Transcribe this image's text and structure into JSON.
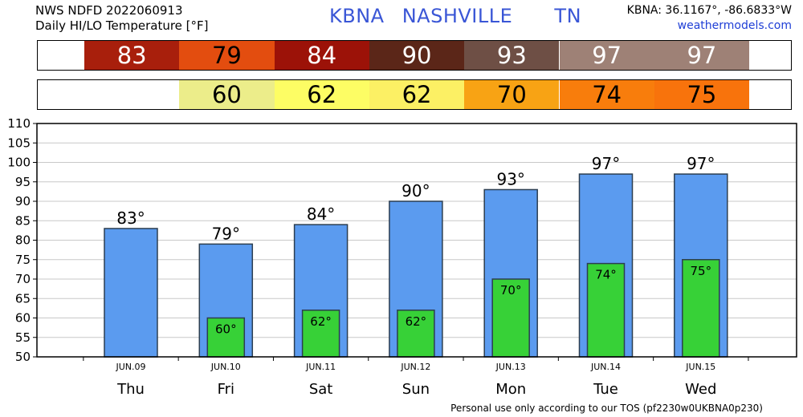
{
  "header": {
    "line1": "NWS NDFD 2022060913",
    "line2": "Daily HI/LO Temperature [°F]",
    "station_id": "KBNA",
    "city": "NASHVILLE",
    "state": "TN",
    "coords": "KBNA: 36.1167°, -86.6833°W",
    "site": "weathermodels.com"
  },
  "footer": "Personal use only according to our TOS (pf2230w0UKBNA0p230)",
  "hi_strip": [
    {
      "value": "83",
      "color": "#a81f0c",
      "text_color": "#ffffff"
    },
    {
      "value": "79",
      "color": "#e34d0f",
      "text_color": "#000000"
    },
    {
      "value": "84",
      "color": "#9c1208",
      "text_color": "#ffffff"
    },
    {
      "value": "90",
      "color": "#5b2618",
      "text_color": "#ffffff"
    },
    {
      "value": "93",
      "color": "#6e4f45",
      "text_color": "#ffffff"
    },
    {
      "value": "97",
      "color": "#9e8176",
      "text_color": "#ffffff"
    },
    {
      "value": "97",
      "color": "#9e8176",
      "text_color": "#ffffff"
    }
  ],
  "lo_strip": [
    {
      "value": "",
      "color": "#ffffff",
      "text_color": "#000000"
    },
    {
      "value": "60",
      "color": "#eced8a",
      "text_color": "#000000"
    },
    {
      "value": "62",
      "color": "#fdfd64",
      "text_color": "#000000"
    },
    {
      "value": "62",
      "color": "#fcf064",
      "text_color": "#000000"
    },
    {
      "value": "70",
      "color": "#f8a314",
      "text_color": "#000000"
    },
    {
      "value": "74",
      "color": "#f87d0c",
      "text_color": "#000000"
    },
    {
      "value": "75",
      "color": "#f8730c",
      "text_color": "#000000"
    }
  ],
  "chart_data": {
    "type": "bar",
    "title": "Daily HI/LO Temperature [°F]",
    "categories": [
      "JUN.09",
      "JUN.10",
      "JUN.11",
      "JUN.12",
      "JUN.13",
      "JUN.14",
      "JUN.15"
    ],
    "days": [
      "Thu",
      "Fri",
      "Sat",
      "Sun",
      "Mon",
      "Tue",
      "Wed"
    ],
    "series": [
      {
        "values": [
          83,
          79,
          84,
          90,
          93,
          97,
          97
        ],
        "color": "#5b9bef",
        "label_suffix": "°"
      },
      {
        "values": [
          null,
          60,
          62,
          62,
          70,
          74,
          75
        ],
        "color": "#37d137",
        "label_suffix": "°"
      }
    ],
    "ylim": [
      50,
      110
    ],
    "yticks": [
      50,
      55,
      60,
      65,
      70,
      75,
      80,
      85,
      90,
      95,
      100,
      105,
      110
    ],
    "grid": true,
    "colors": {
      "hi_bar": "#5b9bef",
      "lo_bar": "#37d137",
      "grid": "#c8c8c8",
      "border": "#2c3e50"
    }
  }
}
